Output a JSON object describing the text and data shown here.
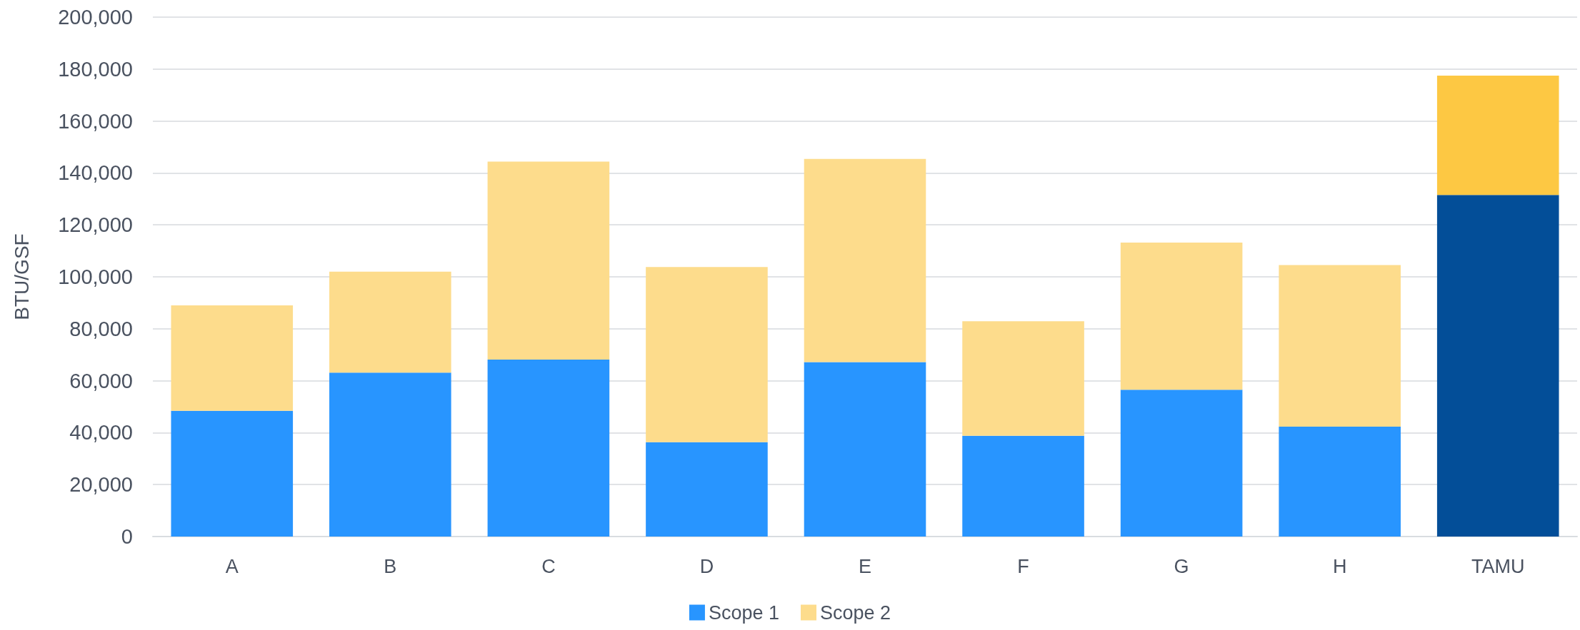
{
  "chart_data": {
    "type": "bar",
    "ylabel": "BTU/GSF",
    "stacked": true,
    "categories": [
      "A",
      "B",
      "C",
      "D",
      "E",
      "F",
      "G",
      "H",
      "TAMU"
    ],
    "series": [
      {
        "name": "Scope 1",
        "color": "#2895ff",
        "colors": [
          "#2895ff",
          "#2895ff",
          "#2895ff",
          "#2895ff",
          "#2895ff",
          "#2895ff",
          "#2895ff",
          "#2895ff",
          "#034e98"
        ],
        "values": [
          48400,
          63100,
          68100,
          36300,
          67200,
          38800,
          56500,
          42300,
          131500
        ]
      },
      {
        "name": "Scope 2",
        "color": "#fddc8c",
        "colors": [
          "#fddc8c",
          "#fddc8c",
          "#fddc8c",
          "#fddc8c",
          "#fddc8c",
          "#fddc8c",
          "#fddc8c",
          "#fddc8c",
          "#fdc843"
        ],
        "values": [
          40600,
          38900,
          76300,
          67500,
          78200,
          44100,
          56700,
          62200,
          46000
        ]
      }
    ],
    "ylim": [
      0,
      200000
    ],
    "yticks": [
      0,
      {
        "value": 20000,
        "label": "20,000"
      },
      {
        "value": 40000,
        "label": "40,000"
      },
      {
        "value": 60000,
        "label": "60,000"
      },
      {
        "value": 80000,
        "label": "80,000"
      },
      {
        "value": 100000,
        "label": "100,000"
      },
      {
        "value": 120000,
        "label": "120,000"
      },
      {
        "value": 140000,
        "label": "140,000"
      },
      {
        "value": 160000,
        "label": "160,000"
      },
      {
        "value": 180000,
        "label": "180,000"
      },
      {
        "value": 200000,
        "label": "200,000"
      }
    ],
    "grid": "y",
    "legend": "bottom"
  }
}
